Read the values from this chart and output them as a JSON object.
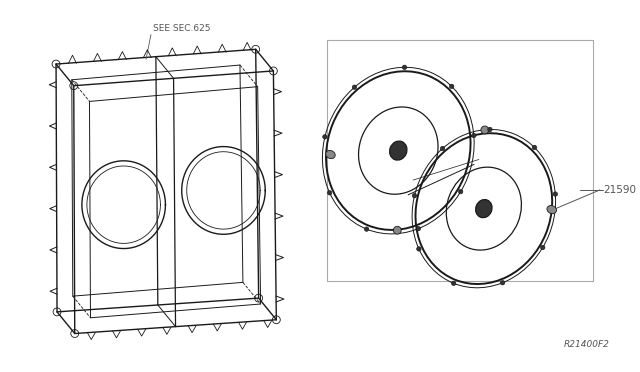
{
  "bg_color": "#ffffff",
  "line_color": "#1a1a1a",
  "dim_color": "#555555",
  "box_line_color": "#999999",
  "label_see_sec": "SEE SEC.625",
  "label_part": "21590",
  "label_ref": "R21400F2",
  "fig_width": 6.4,
  "fig_height": 3.72,
  "dpi": 100
}
